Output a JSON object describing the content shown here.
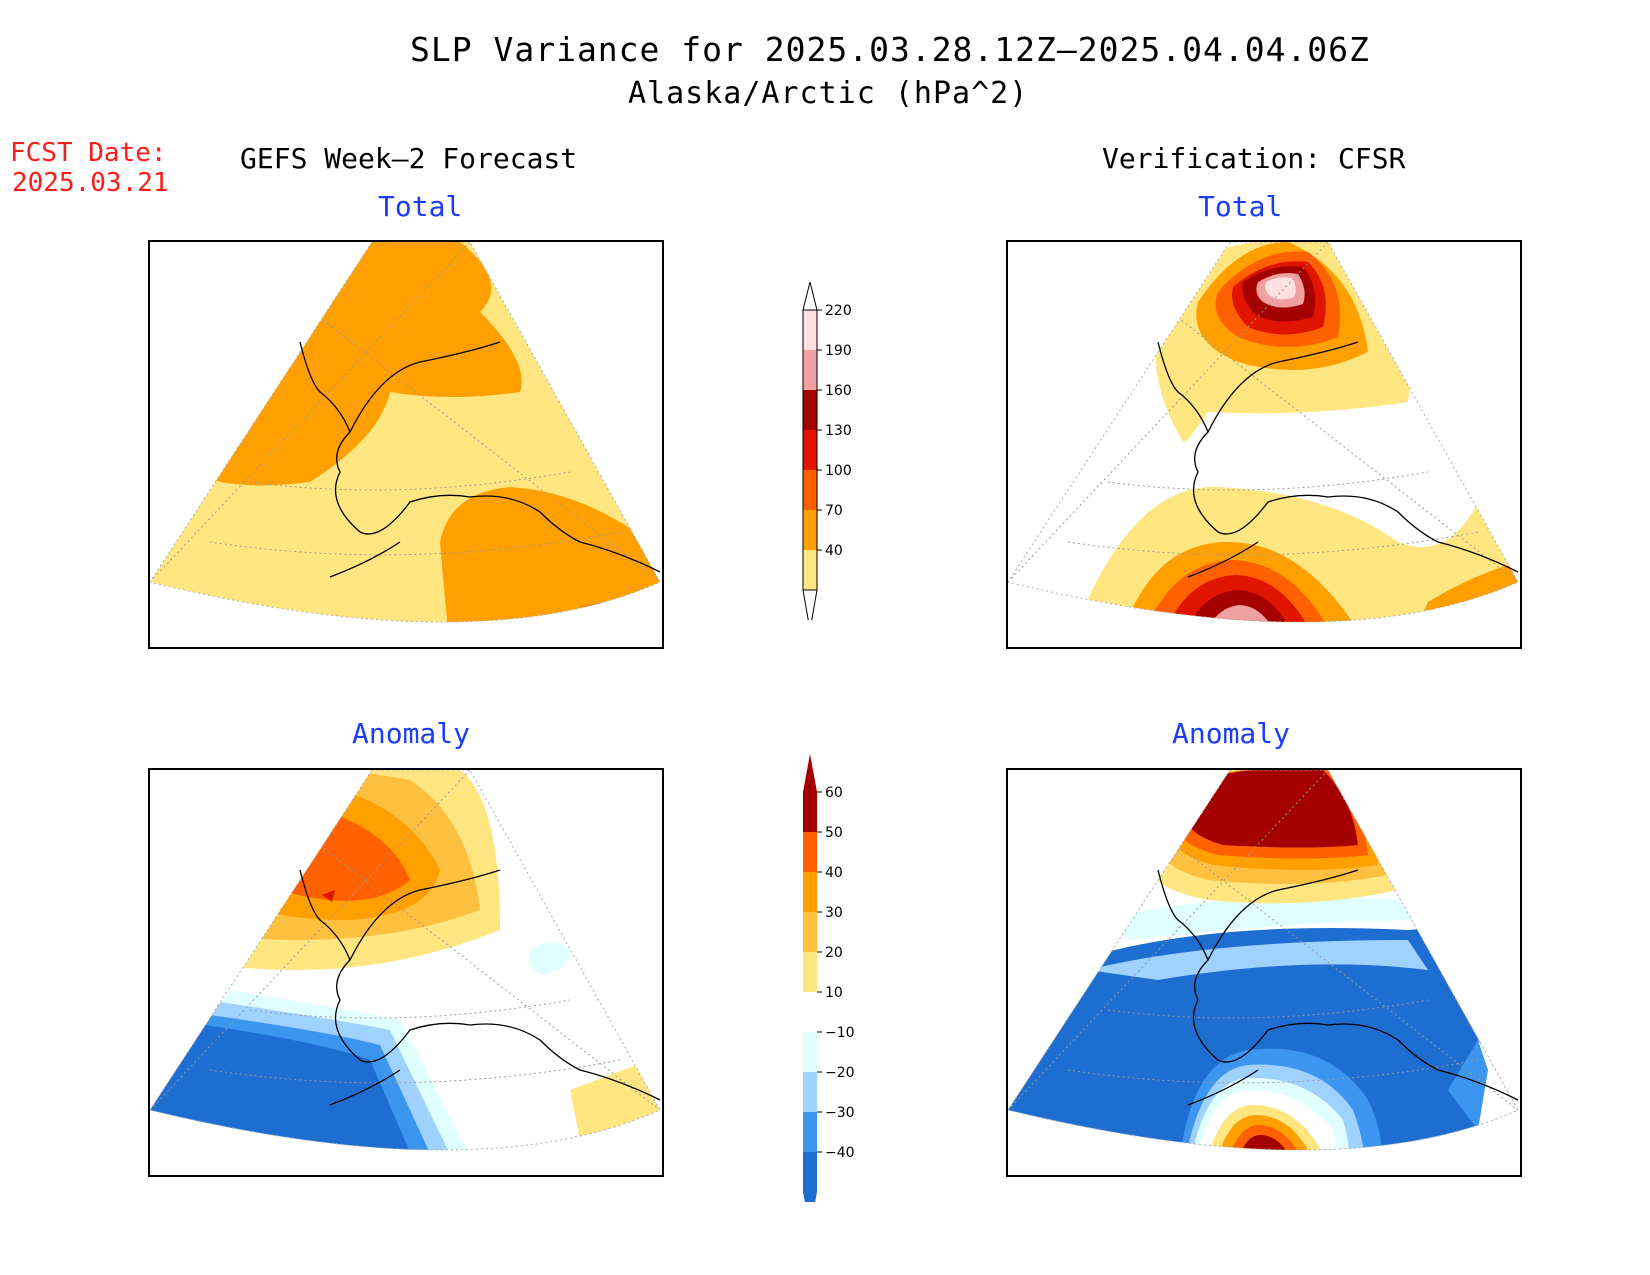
{
  "title": "SLP Variance for 2025.03.28.12Z–2025.04.04.06Z",
  "subtitle": "Alaska/Arctic (hPa^2)",
  "fcst_date": {
    "label": "FCST Date:",
    "value": "2025.03.21"
  },
  "columns": {
    "left": "GEFS Week–2 Forecast",
    "right": "Verification: CFSR"
  },
  "panel_labels": {
    "fcst_total": "Total",
    "verif_total": "Total",
    "fcst_anomaly": "Anomaly",
    "verif_anomaly": "Anomaly"
  },
  "colorbars": {
    "total": {
      "levels": [
        "40",
        "70",
        "100",
        "130",
        "160",
        "190",
        "220"
      ],
      "colors": [
        "#ffe680",
        "#ffa000",
        "#ff6000",
        "#e11400",
        "#a50000",
        "#f0a0a0",
        "#ffe0e0"
      ]
    },
    "anomaly": {
      "levels": [
        "60",
        "50",
        "40",
        "30",
        "20",
        "10",
        "−10",
        "−20",
        "−30",
        "−40"
      ],
      "colors": [
        "#a50000",
        "#ff6000",
        "#ffa000",
        "#ffc040",
        "#ffe680",
        "#ffffff",
        "#e0ffff",
        "#a0d2ff",
        "#3c96f0",
        "#1e6ed2"
      ]
    }
  }
}
